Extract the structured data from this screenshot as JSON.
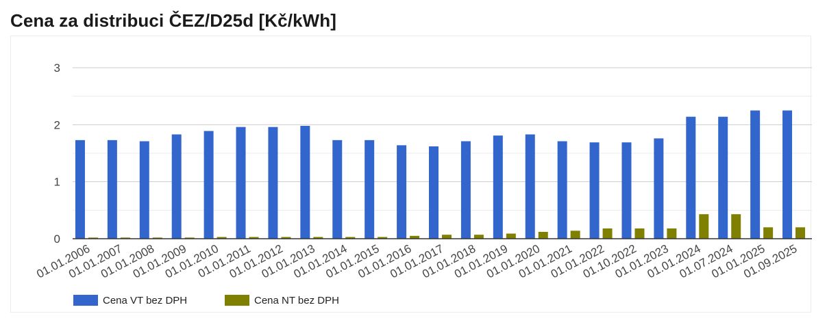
{
  "title": "Cena za distribuci ČEZ/D25d [Kč/kWh]",
  "chart_data": {
    "type": "bar",
    "categories": [
      "01.01.2006",
      "01.01.2007",
      "01.01.2008",
      "01.01.2009",
      "01.01.2010",
      "01.01.2011",
      "01.01.2012",
      "01.01.2013",
      "01.01.2014",
      "01.01.2015",
      "01.01.2016",
      "01.01.2017",
      "01.01.2018",
      "01.01.2019",
      "01.01.2020",
      "01.01.2021",
      "01.01.2022",
      "01.10.2022",
      "01.01.2023",
      "01.01.2024",
      "01.07.2024",
      "01.01.2025",
      "01.09.2025"
    ],
    "series": [
      {
        "name": "Cena VT bez DPH",
        "color": "#3366cc",
        "values": [
          1.73,
          1.73,
          1.71,
          1.83,
          1.89,
          1.96,
          1.96,
          1.98,
          1.73,
          1.73,
          1.64,
          1.62,
          1.71,
          1.81,
          1.83,
          1.71,
          1.69,
          1.69,
          1.76,
          2.14,
          2.14,
          2.25,
          2.25
        ]
      },
      {
        "name": "Cena NT bez DPH",
        "color": "#808000",
        "values": [
          0.02,
          0.02,
          0.02,
          0.02,
          0.03,
          0.03,
          0.03,
          0.03,
          0.03,
          0.03,
          0.05,
          0.07,
          0.07,
          0.09,
          0.12,
          0.14,
          0.18,
          0.18,
          0.18,
          0.43,
          0.43,
          0.2,
          0.2
        ]
      }
    ],
    "yticks": [
      "0",
      "1",
      "2",
      "3"
    ],
    "ylim": [
      0,
      3
    ],
    "grid": true,
    "legend_position": "bottom-left"
  }
}
